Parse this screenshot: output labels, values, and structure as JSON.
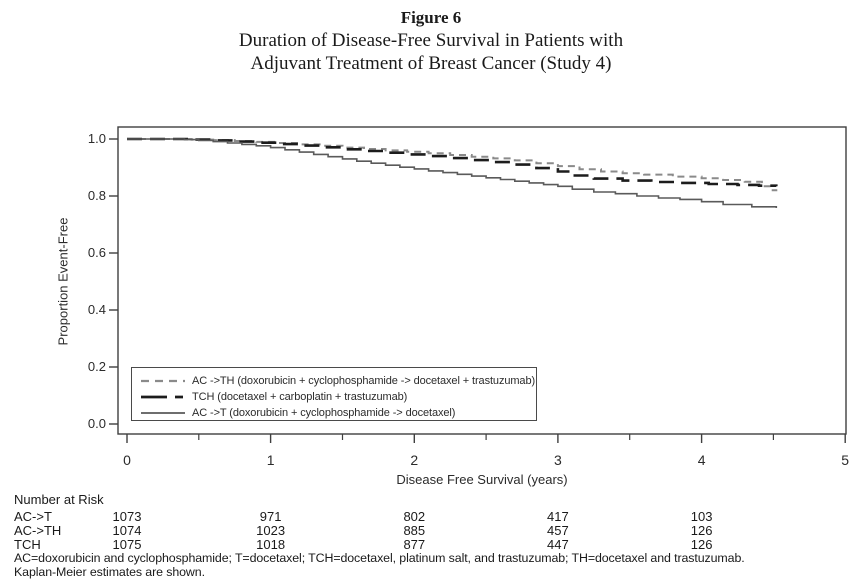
{
  "title": {
    "figure_label": "Figure 6",
    "line1": "Duration of Disease-Free Survival in Patients with",
    "line2": "Adjuvant Treatment of Breast Cancer (Study 4)"
  },
  "chart_data": {
    "type": "line",
    "subtype": "kaplan-meier-step",
    "xlabel": "Disease Free Survival (years)",
    "ylabel": "Proportion Event-Free",
    "xlim": [
      0,
      5
    ],
    "ylim": [
      0.0,
      1.0
    ],
    "grid": false,
    "legend_position": "inside-bottom-left",
    "axis_color": "#3f3f3f",
    "x_tick_labels": [
      "0",
      "1",
      "2",
      "3",
      "4",
      "5"
    ],
    "x_minor_ticks": [
      0.5,
      1.5,
      2.5,
      3.5,
      4.5
    ],
    "y_tick_labels": [
      "0.0",
      "0.2",
      "0.4",
      "0.6",
      "0.8",
      "1.0"
    ],
    "series": [
      {
        "name": "AC ->TH (doxorubicin + cyclophosphamide -> docetaxel + trastuzumab)",
        "color": "#8a8a8a",
        "style": "dashed",
        "width": 2,
        "dash": "7,5",
        "legend_width": 2.2,
        "legend_dash": "8,6",
        "points": [
          [
            0,
            1.0
          ],
          [
            0.45,
            0.998
          ],
          [
            0.6,
            0.996
          ],
          [
            0.75,
            0.993
          ],
          [
            0.9,
            0.99
          ],
          [
            1.05,
            0.986
          ],
          [
            1.2,
            0.981
          ],
          [
            1.35,
            0.976
          ],
          [
            1.5,
            0.97
          ],
          [
            1.65,
            0.965
          ],
          [
            1.8,
            0.96
          ],
          [
            1.95,
            0.955
          ],
          [
            2.1,
            0.95
          ],
          [
            2.25,
            0.944
          ],
          [
            2.4,
            0.938
          ],
          [
            2.55,
            0.932
          ],
          [
            2.7,
            0.925
          ],
          [
            2.85,
            0.915
          ],
          [
            3.0,
            0.905
          ],
          [
            3.15,
            0.894
          ],
          [
            3.3,
            0.886
          ],
          [
            3.45,
            0.88
          ],
          [
            3.6,
            0.875
          ],
          [
            3.8,
            0.868
          ],
          [
            4.0,
            0.862
          ],
          [
            4.15,
            0.856
          ],
          [
            4.3,
            0.85
          ],
          [
            4.42,
            0.834
          ],
          [
            4.48,
            0.82
          ],
          [
            4.52,
            0.817
          ]
        ]
      },
      {
        "name": "TCH (docetaxel + carboplatin + trastuzumab)",
        "color": "#1c1c1c",
        "style": "long-dash",
        "width": 2.6,
        "dash": "15,8",
        "legend_width": 2.8,
        "legend_dash": "26,8,8,46",
        "points": [
          [
            0,
            1.0
          ],
          [
            0.45,
            0.998
          ],
          [
            0.6,
            0.995
          ],
          [
            0.75,
            0.991
          ],
          [
            0.9,
            0.987
          ],
          [
            1.05,
            0.982
          ],
          [
            1.2,
            0.977
          ],
          [
            1.35,
            0.971
          ],
          [
            1.5,
            0.964
          ],
          [
            1.65,
            0.958
          ],
          [
            1.8,
            0.952
          ],
          [
            1.95,
            0.946
          ],
          [
            2.1,
            0.94
          ],
          [
            2.25,
            0.933
          ],
          [
            2.4,
            0.926
          ],
          [
            2.55,
            0.919
          ],
          [
            2.7,
            0.91
          ],
          [
            2.85,
            0.898
          ],
          [
            3.0,
            0.886
          ],
          [
            3.1,
            0.872
          ],
          [
            3.25,
            0.861
          ],
          [
            3.45,
            0.854
          ],
          [
            3.65,
            0.849
          ],
          [
            3.85,
            0.846
          ],
          [
            4.05,
            0.842
          ],
          [
            4.25,
            0.839
          ],
          [
            4.4,
            0.836
          ],
          [
            4.52,
            0.834
          ]
        ]
      },
      {
        "name": "AC ->T (doxorubicin + cyclophosphamide -> docetaxel)",
        "color": "#5a5a5a",
        "style": "solid",
        "width": 1.6,
        "dash": "",
        "legend_width": 1.8,
        "legend_dash": "",
        "points": [
          [
            0,
            1.0
          ],
          [
            0.4,
            0.998
          ],
          [
            0.5,
            0.995
          ],
          [
            0.6,
            0.991
          ],
          [
            0.7,
            0.986
          ],
          [
            0.8,
            0.981
          ],
          [
            0.9,
            0.976
          ],
          [
            1.0,
            0.97
          ],
          [
            1.1,
            0.962
          ],
          [
            1.2,
            0.954
          ],
          [
            1.3,
            0.946
          ],
          [
            1.4,
            0.938
          ],
          [
            1.5,
            0.93
          ],
          [
            1.6,
            0.922
          ],
          [
            1.7,
            0.915
          ],
          [
            1.8,
            0.908
          ],
          [
            1.9,
            0.901
          ],
          [
            2.0,
            0.895
          ],
          [
            2.1,
            0.888
          ],
          [
            2.2,
            0.882
          ],
          [
            2.3,
            0.876
          ],
          [
            2.4,
            0.87
          ],
          [
            2.5,
            0.864
          ],
          [
            2.6,
            0.858
          ],
          [
            2.7,
            0.852
          ],
          [
            2.8,
            0.846
          ],
          [
            2.9,
            0.84
          ],
          [
            3.0,
            0.834
          ],
          [
            3.1,
            0.824
          ],
          [
            3.25,
            0.814
          ],
          [
            3.4,
            0.808
          ],
          [
            3.55,
            0.8
          ],
          [
            3.7,
            0.793
          ],
          [
            3.85,
            0.788
          ],
          [
            4.0,
            0.78
          ],
          [
            4.15,
            0.77
          ],
          [
            4.35,
            0.762
          ],
          [
            4.52,
            0.758
          ]
        ]
      }
    ]
  },
  "risk_table": {
    "heading": "Number at Risk",
    "time_points": [
      0,
      1,
      2,
      3,
      4
    ],
    "rows": [
      {
        "label": "AC->T",
        "values": [
          "1073",
          "971",
          "802",
          "417",
          "103"
        ]
      },
      {
        "label": "AC->TH",
        "values": [
          "1074",
          "1023",
          "885",
          "457",
          "126"
        ]
      },
      {
        "label": "TCH",
        "values": [
          "1075",
          "1018",
          "877",
          "447",
          "126"
        ]
      }
    ]
  },
  "footnotes": [
    "AC=doxorubicin and cyclophosphamide; T=docetaxel; TCH=docetaxel, platinum salt, and trastuzumab; TH=docetaxel and trastuzumab.",
    "Kaplan-Meier estimates are shown."
  ]
}
